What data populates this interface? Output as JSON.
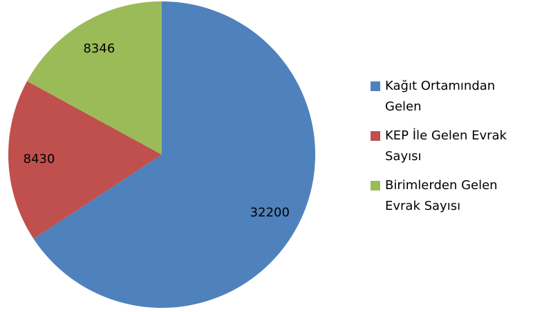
{
  "chart_data": {
    "type": "pie",
    "categories": [
      "Kağıt Ortamından Gelen",
      "KEP İle Gelen Evrak Sayısı",
      "Birimlerden Gelen Evrak Sayısı"
    ],
    "values": [
      32200,
      8430,
      8346
    ],
    "colors": [
      "#4f81bd",
      "#c0504d",
      "#9bbb59"
    ],
    "legend": "right"
  }
}
